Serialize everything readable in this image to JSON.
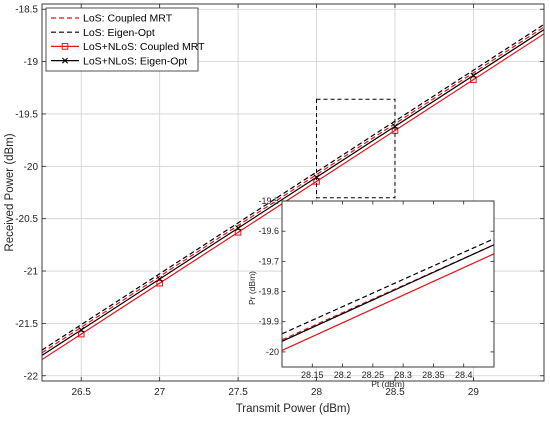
{
  "chart_data": [
    {
      "type": "line",
      "xlabel": "Transmit Power (dBm)",
      "ylabel": "Received Power (dBm)",
      "xlim": [
        26.25,
        29.45
      ],
      "ylim": [
        -22.05,
        -18.45
      ],
      "xticks": [
        26.5,
        27,
        27.5,
        28,
        28.5,
        29
      ],
      "xtick_labels": [
        "26.5",
        "27",
        "27.5",
        "28",
        "28.5",
        "29"
      ],
      "yticks": [
        -22,
        -21.5,
        -21,
        -20.5,
        -20,
        -19.5,
        -19,
        -18.5
      ],
      "ytick_labels": [
        "-22",
        "-21.5",
        "-21",
        "-20.5",
        "-20",
        "-19.5",
        "-19",
        "-18.5"
      ],
      "grid": true,
      "legend_position": "top-left",
      "colors": {
        "red": "#e8121a",
        "black": "#000000",
        "grid": "#d0d0d0"
      },
      "series": [
        {
          "name": "LoS: Coupled MRT",
          "color": "#e8121a",
          "dash": "dashed",
          "marker": "none",
          "x": [
            26.25,
            29.45
          ],
          "y": [
            -21.78,
            -18.67
          ]
        },
        {
          "name": "LoS: Eigen-Opt",
          "color": "#000000",
          "dash": "dashed",
          "marker": "none",
          "x": [
            26.25,
            29.45
          ],
          "y": [
            -21.755,
            -18.645
          ]
        },
        {
          "name": "LoS+NLoS: Coupled MRT",
          "color": "#e8121a",
          "dash": "solid",
          "marker": "square",
          "marker_x": [
            26.5,
            27,
            27.5,
            28,
            28.5,
            29
          ],
          "x": [
            26.25,
            29.45
          ],
          "y": [
            -21.845,
            -18.735
          ]
        },
        {
          "name": "LoS+NLoS: Eigen-Opt",
          "color": "#000000",
          "dash": "solid",
          "marker": "x",
          "marker_x": [
            26.5,
            27,
            27.5,
            28,
            28.5,
            29
          ],
          "x": [
            26.25,
            29.45
          ],
          "y": [
            -21.805,
            -18.695
          ]
        }
      ],
      "zoom_box": {
        "x": [
          28,
          28.5
        ],
        "y": [
          -20.3,
          -19.36
        ]
      }
    },
    {
      "type": "line",
      "role": "inset",
      "xlabel": "Pt (dBm)",
      "ylabel": "Pr (dBm)",
      "xlim": [
        28.1,
        28.45
      ],
      "ylim": [
        -20.05,
        -19.5
      ],
      "xticks": [
        28.15,
        28.2,
        28.25,
        28.3,
        28.35,
        28.4
      ],
      "xtick_labels": [
        "28.15",
        "28.2",
        "28.25",
        "28.3",
        "28.35",
        "28.4"
      ],
      "yticks": [
        -20,
        -19.9,
        -19.8,
        -19.7,
        -19.6,
        -19.5
      ],
      "ytick_labels": [
        "-20",
        "-19.9",
        "-19.8",
        "-19.7",
        "-19.6",
        "-19.5"
      ],
      "grid": false,
      "series": [
        {
          "color": "#e8121a",
          "dash": "dashed",
          "x": [
            28.1,
            28.45
          ],
          "y": [
            -19.96,
            -19.645
          ]
        },
        {
          "color": "#000000",
          "dash": "dashed",
          "x": [
            28.1,
            28.45
          ],
          "y": [
            -19.94,
            -19.625
          ]
        },
        {
          "color": "#e8121a",
          "dash": "solid",
          "x": [
            28.1,
            28.45
          ],
          "y": [
            -19.995,
            -19.675
          ]
        },
        {
          "color": "#000000",
          "dash": "solid",
          "x": [
            28.1,
            28.45
          ],
          "y": [
            -19.965,
            -19.645
          ]
        }
      ]
    }
  ]
}
